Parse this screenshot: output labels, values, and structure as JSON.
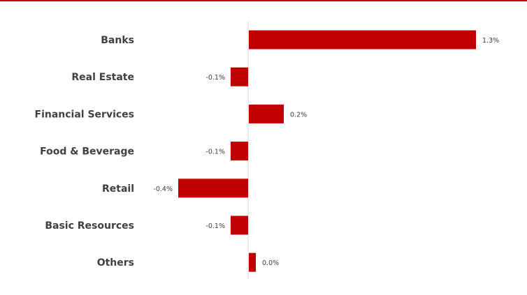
{
  "colors": {
    "bar": "#c00000",
    "axis": "#d9d9d9",
    "accent_rule": "#c00000"
  },
  "chart_data": {
    "type": "bar",
    "orientation": "horizontal",
    "categories": [
      "Banks",
      "Real Estate",
      "Financial Services",
      "Food & Beverage",
      "Retail",
      "Basic Resources",
      "Others"
    ],
    "values": [
      1.3,
      -0.1,
      0.2,
      -0.1,
      -0.4,
      -0.1,
      0.0
    ],
    "value_labels": [
      "1.3%",
      "-0.1%",
      "0.2%",
      "-0.1%",
      "-0.4%",
      "-0.1%",
      "0.0%"
    ],
    "title": "",
    "xlabel": "",
    "ylabel": "",
    "grid": false,
    "legend": "none"
  }
}
